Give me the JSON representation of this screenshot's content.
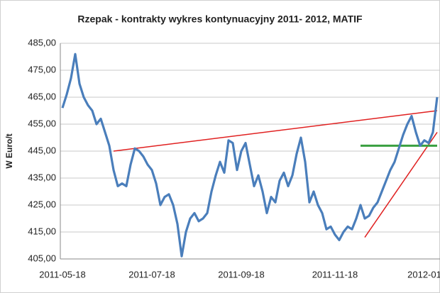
{
  "chart_data": {
    "type": "line",
    "title": "Rzepak - kontrakty wykres kontynuacyjny 2011- 2012,  MATIF",
    "y_label": "W Euro/t",
    "categories": [
      "2011-05-18",
      null,
      null,
      null,
      null,
      null,
      null,
      null,
      null,
      null,
      null,
      null,
      null,
      null,
      null,
      null,
      null,
      null,
      null,
      null,
      null,
      "2011-07-18",
      null,
      null,
      null,
      null,
      null,
      null,
      null,
      null,
      null,
      null,
      null,
      null,
      null,
      null,
      null,
      null,
      null,
      null,
      null,
      null,
      "2011-09-18",
      null,
      null,
      null,
      null,
      null,
      null,
      null,
      null,
      null,
      null,
      null,
      null,
      null,
      null,
      null,
      null,
      null,
      null,
      null,
      null,
      null,
      "2011-11-18",
      null,
      null,
      null,
      null,
      null,
      null,
      null,
      null,
      null,
      null,
      null,
      null,
      null,
      null,
      null,
      null,
      null,
      null,
      null,
      null,
      "2012-01",
      null,
      null,
      null
    ],
    "series": [
      {
        "color": "#4a7ebb",
        "values": [
          461,
          466,
          472,
          481,
          470,
          465,
          462,
          460,
          455,
          457,
          452,
          447,
          438,
          432,
          433,
          432,
          440,
          446,
          445,
          443,
          440,
          438,
          433,
          425,
          428,
          429,
          425,
          418,
          406,
          415,
          420,
          422,
          419,
          420,
          422,
          430,
          436,
          441,
          437,
          449,
          448,
          438,
          445,
          448,
          440,
          432,
          436,
          430,
          422,
          428,
          426,
          434,
          437,
          432,
          436,
          444,
          450,
          441,
          426,
          430,
          425,
          422,
          416,
          417,
          414,
          412,
          415,
          417,
          416,
          420,
          425,
          420,
          421,
          424,
          426,
          430,
          434,
          438,
          441,
          446,
          451,
          455,
          458,
          452,
          447,
          449,
          448,
          452,
          465
        ]
      }
    ],
    "trendlines": [
      {
        "color": "#e02020",
        "x": [
          12,
          88
        ],
        "y": [
          445,
          460
        ]
      },
      {
        "color": "#e02020",
        "x": [
          71,
          88
        ],
        "y": [
          413,
          452
        ]
      },
      {
        "color": "#3aa040",
        "x": [
          70,
          88
        ],
        "y": [
          447,
          447
        ]
      }
    ],
    "ylim": [
      405,
      485
    ],
    "yticks": [
      {
        "value": 405,
        "label": "405,00"
      },
      {
        "value": 415,
        "label": "415,00"
      },
      {
        "value": 425,
        "label": "425,00"
      },
      {
        "value": 435,
        "label": "435,00"
      },
      {
        "value": 445,
        "label": "445,00"
      },
      {
        "value": 455,
        "label": "455,00"
      },
      {
        "value": 465,
        "label": "465,00"
      },
      {
        "value": 475,
        "label": "475,00"
      },
      {
        "value": 485,
        "label": "485,00"
      }
    ],
    "grid": true
  }
}
